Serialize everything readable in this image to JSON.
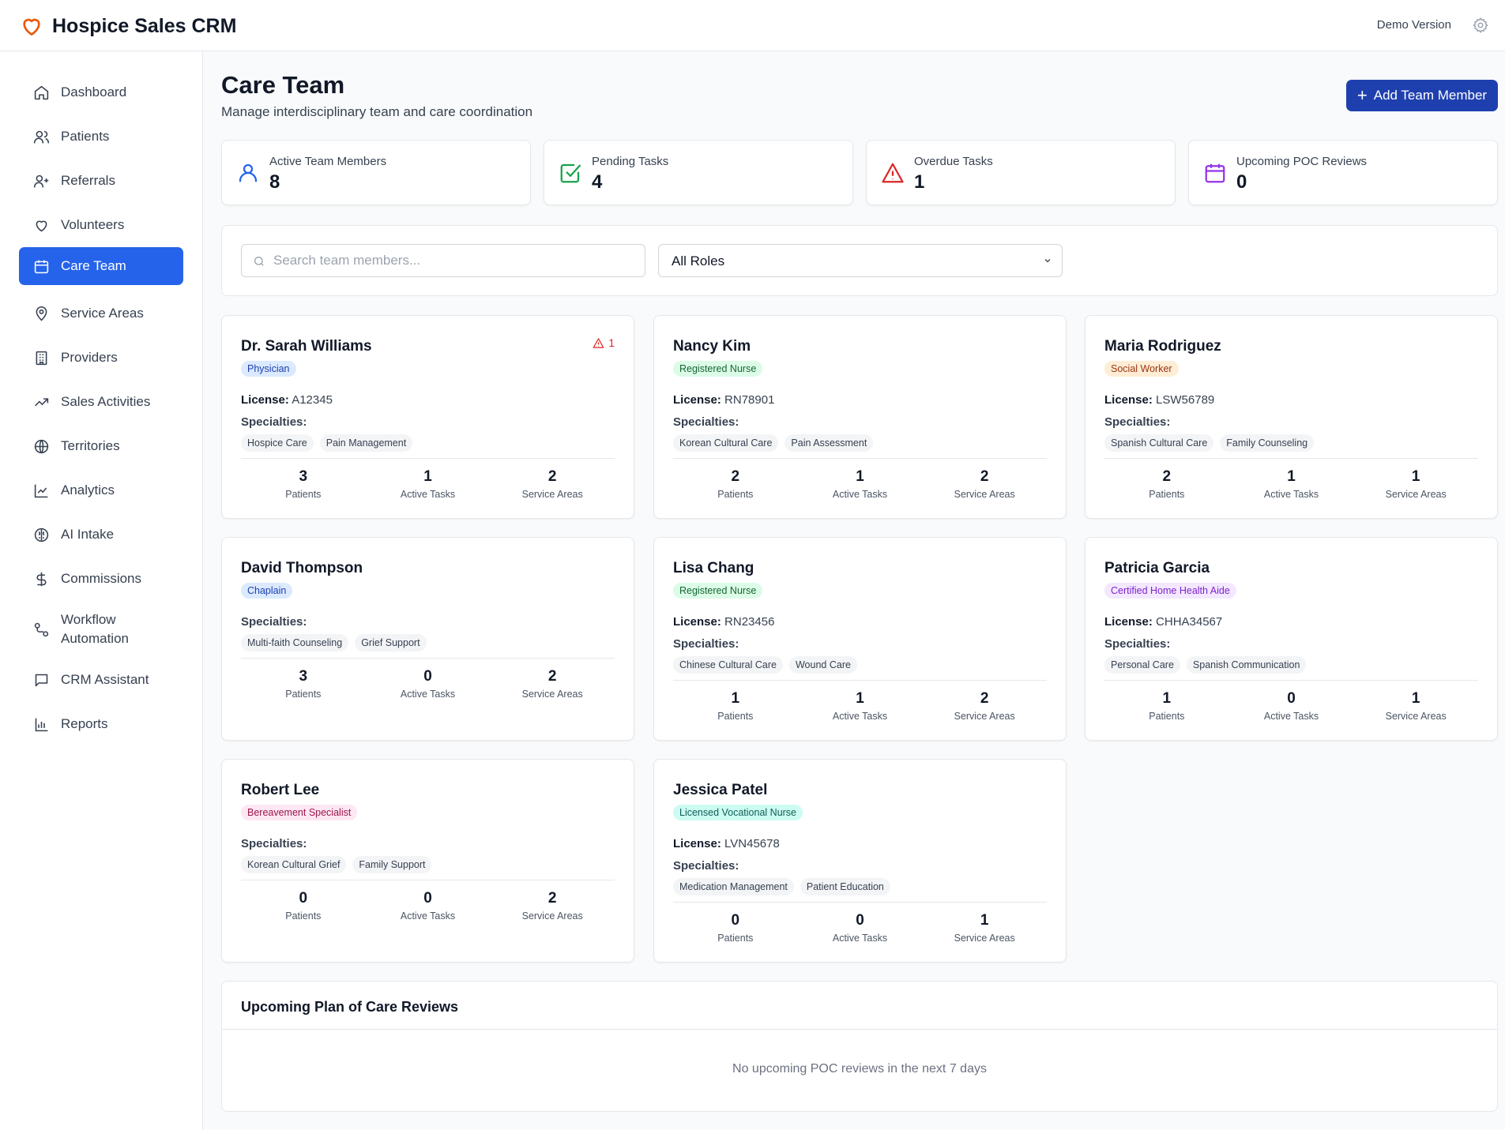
{
  "app": {
    "title": "Hospice Sales CRM",
    "version_label": "Demo Version"
  },
  "sidebar": {
    "items": [
      {
        "label": "Dashboard",
        "icon": "home-icon"
      },
      {
        "label": "Patients",
        "icon": "users-icon"
      },
      {
        "label": "Referrals",
        "icon": "user-plus-icon"
      },
      {
        "label": "Volunteers",
        "icon": "heart-icon"
      },
      {
        "label": "Care Team",
        "icon": "calendar-icon",
        "active": true
      },
      {
        "label": "Service Areas",
        "icon": "map-pin-icon"
      },
      {
        "label": "Providers",
        "icon": "building-icon"
      },
      {
        "label": "Sales Activities",
        "icon": "trending-up-icon"
      },
      {
        "label": "Territories",
        "icon": "globe-icon"
      },
      {
        "label": "Analytics",
        "icon": "line-chart-icon"
      },
      {
        "label": "AI Intake",
        "icon": "brain-icon"
      },
      {
        "label": "Commissions",
        "icon": "dollar-icon"
      },
      {
        "label": "Workflow Automation",
        "icon": "workflow-icon"
      },
      {
        "label": "CRM Assistant",
        "icon": "message-icon"
      },
      {
        "label": "Reports",
        "icon": "bar-chart-icon"
      }
    ]
  },
  "header": {
    "title": "Care Team",
    "subtitle": "Manage interdisciplinary team and care coordination",
    "add_button": "Add Team Member"
  },
  "stats": [
    {
      "label": "Active Team Members",
      "value": "8",
      "icon": "user-icon",
      "color": "#2563eb"
    },
    {
      "label": "Pending Tasks",
      "value": "4",
      "icon": "check-square-icon",
      "color": "#16a34a"
    },
    {
      "label": "Overdue Tasks",
      "value": "1",
      "icon": "alert-triangle-icon",
      "color": "#dc2626"
    },
    {
      "label": "Upcoming POC Reviews",
      "value": "0",
      "icon": "calendar-icon",
      "color": "#9333ea"
    }
  ],
  "filters": {
    "search_placeholder": "Search team members...",
    "role_selected": "All Roles"
  },
  "labels": {
    "license": "License:",
    "specialties": "Specialties:",
    "patients": "Patients",
    "active_tasks": "Active Tasks",
    "service_areas": "Service Areas"
  },
  "members": [
    {
      "name": "Dr. Sarah Williams",
      "role": "Physician",
      "license": "A12345",
      "specialties": [
        "Hospice Care",
        "Pain Management"
      ],
      "patients": "3",
      "active_tasks": "1",
      "service_areas": "2",
      "alert": "1"
    },
    {
      "name": "Nancy Kim",
      "role": "Registered Nurse",
      "license": "RN78901",
      "specialties": [
        "Korean Cultural Care",
        "Pain Assessment"
      ],
      "patients": "2",
      "active_tasks": "1",
      "service_areas": "2"
    },
    {
      "name": "Maria Rodriguez",
      "role": "Social Worker",
      "license": "LSW56789",
      "specialties": [
        "Spanish Cultural Care",
        "Family Counseling"
      ],
      "patients": "2",
      "active_tasks": "1",
      "service_areas": "1"
    },
    {
      "name": "David Thompson",
      "role": "Chaplain",
      "specialties": [
        "Multi-faith Counseling",
        "Grief Support"
      ],
      "patients": "3",
      "active_tasks": "0",
      "service_areas": "2"
    },
    {
      "name": "Lisa Chang",
      "role": "Registered Nurse",
      "license": "RN23456",
      "specialties": [
        "Chinese Cultural Care",
        "Wound Care"
      ],
      "patients": "1",
      "active_tasks": "1",
      "service_areas": "2"
    },
    {
      "name": "Patricia Garcia",
      "role": "Certified Home Health Aide",
      "license": "CHHA34567",
      "specialties": [
        "Personal Care",
        "Spanish Communication"
      ],
      "patients": "1",
      "active_tasks": "0",
      "service_areas": "1"
    },
    {
      "name": "Robert Lee",
      "role": "Bereavement Specialist",
      "specialties": [
        "Korean Cultural Grief",
        "Family Support"
      ],
      "patients": "0",
      "active_tasks": "0",
      "service_areas": "2"
    },
    {
      "name": "Jessica Patel",
      "role": "Licensed Vocational Nurse",
      "license": "LVN45678",
      "specialties": [
        "Medication Management",
        "Patient Education"
      ],
      "patients": "0",
      "active_tasks": "0",
      "service_areas": "1"
    }
  ],
  "poc": {
    "title": "Upcoming Plan of Care Reviews",
    "empty": "No upcoming POC reviews in the next 7 days"
  }
}
